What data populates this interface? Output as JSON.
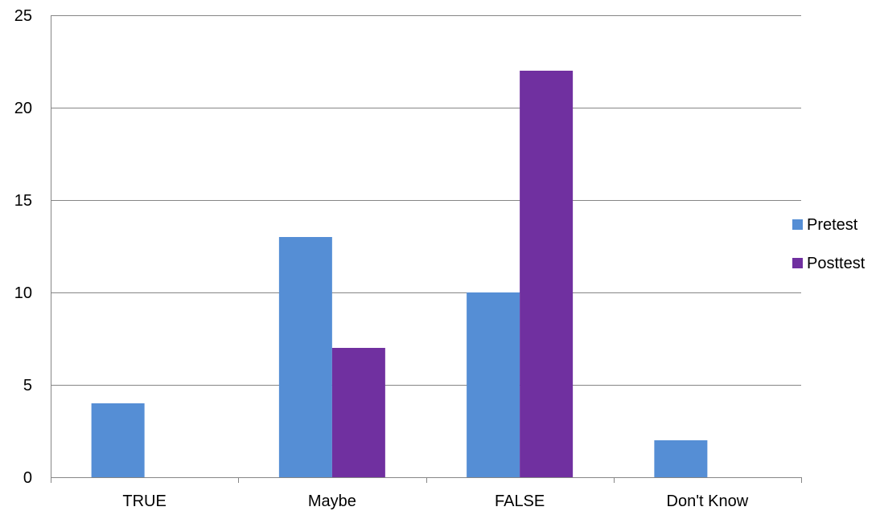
{
  "chart_data": {
    "type": "bar",
    "title": "",
    "xlabel": "",
    "ylabel": "",
    "categories": [
      "TRUE",
      "Maybe",
      "FALSE",
      "Don't Know"
    ],
    "series": [
      {
        "name": "Pretest",
        "values": [
          4,
          13,
          10,
          2
        ],
        "color": "#558ED5"
      },
      {
        "name": "Posttest",
        "values": [
          0,
          7,
          22,
          0
        ],
        "color": "#7030A0"
      }
    ],
    "ylim": [
      0,
      25
    ],
    "yticks": [
      0,
      5,
      10,
      15,
      20,
      25
    ],
    "grid": true,
    "legend_position": "right"
  }
}
